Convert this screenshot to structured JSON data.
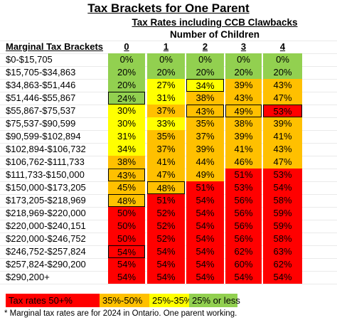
{
  "title": "Tax Brackets for One Parent",
  "subtitle": "Tax Rates including CCB Clawbacks",
  "subheader": "Number of Children",
  "bracket_header": "Marginal Tax Brackets",
  "children_headers": [
    "0",
    "1",
    "2",
    "3",
    "4"
  ],
  "colors": {
    "red": "#ff0000",
    "orange": "#ffc000",
    "yellow": "#ffff00",
    "green": "#92d050"
  },
  "rows": [
    {
      "bracket": "$0-$15,705",
      "rates": [
        "0%",
        "0%",
        "0%",
        "0%",
        "0%"
      ],
      "colors": [
        "green",
        "green",
        "green",
        "green",
        "green"
      ],
      "boxed": []
    },
    {
      "bracket": "$15,705-$34,863",
      "rates": [
        "20%",
        "20%",
        "20%",
        "20%",
        "20%"
      ],
      "colors": [
        "green",
        "green",
        "green",
        "green",
        "green"
      ],
      "boxed": []
    },
    {
      "bracket": "$34,863-$51,446",
      "rates": [
        "20%",
        "27%",
        "34%",
        "39%",
        "43%"
      ],
      "colors": [
        "green",
        "yellow",
        "yellow",
        "orange",
        "orange"
      ],
      "boxed": [
        2
      ]
    },
    {
      "bracket": "$51,446-$55,867",
      "rates": [
        "24%",
        "31%",
        "38%",
        "43%",
        "47%"
      ],
      "colors": [
        "green",
        "yellow",
        "orange",
        "orange",
        "orange"
      ],
      "boxed": [
        0
      ]
    },
    {
      "bracket": "$55,867-$75,537",
      "rates": [
        "30%",
        "37%",
        "43%",
        "49%",
        "53%"
      ],
      "colors": [
        "yellow",
        "orange",
        "orange",
        "orange",
        "red"
      ],
      "boxed": [
        2,
        3,
        4
      ]
    },
    {
      "bracket": "$75,537-$90,599",
      "rates": [
        "30%",
        "33%",
        "35%",
        "38%",
        "39%"
      ],
      "colors": [
        "yellow",
        "yellow",
        "orange",
        "orange",
        "orange"
      ],
      "boxed": []
    },
    {
      "bracket": "$90,599-$102,894",
      "rates": [
        "31%",
        "35%",
        "37%",
        "39%",
        "41%"
      ],
      "colors": [
        "yellow",
        "orange",
        "orange",
        "orange",
        "orange"
      ],
      "boxed": []
    },
    {
      "bracket": "$102,894-$106,732",
      "rates": [
        "34%",
        "37%",
        "39%",
        "41%",
        "43%"
      ],
      "colors": [
        "yellow",
        "orange",
        "orange",
        "orange",
        "orange"
      ],
      "boxed": []
    },
    {
      "bracket": "$106,762-$111,733",
      "rates": [
        "38%",
        "41%",
        "44%",
        "46%",
        "47%"
      ],
      "colors": [
        "orange",
        "orange",
        "orange",
        "orange",
        "orange"
      ],
      "boxed": []
    },
    {
      "bracket": "$111,733-$150,000",
      "rates": [
        "43%",
        "47%",
        "49%",
        "51%",
        "53%"
      ],
      "colors": [
        "orange",
        "orange",
        "orange",
        "red",
        "red"
      ],
      "boxed": [
        0
      ]
    },
    {
      "bracket": "$150,000-$173,205",
      "rates": [
        "45%",
        "48%",
        "51%",
        "53%",
        "54%"
      ],
      "colors": [
        "orange",
        "orange",
        "red",
        "red",
        "red"
      ],
      "boxed": [
        1
      ]
    },
    {
      "bracket": "$173,205-$218,969",
      "rates": [
        "48%",
        "51%",
        "54%",
        "56%",
        "58%"
      ],
      "colors": [
        "orange",
        "red",
        "red",
        "red",
        "red"
      ],
      "boxed": [
        0
      ]
    },
    {
      "bracket": "$218,969-$220,000",
      "rates": [
        "50%",
        "52%",
        "54%",
        "56%",
        "59%"
      ],
      "colors": [
        "red",
        "red",
        "red",
        "red",
        "red"
      ],
      "boxed": []
    },
    {
      "bracket": "$220,000-$240,151",
      "rates": [
        "50%",
        "52%",
        "54%",
        "56%",
        "59%"
      ],
      "colors": [
        "red",
        "red",
        "red",
        "red",
        "red"
      ],
      "boxed": []
    },
    {
      "bracket": "$220,000-$246,752",
      "rates": [
        "50%",
        "52%",
        "54%",
        "56%",
        "58%"
      ],
      "colors": [
        "red",
        "red",
        "red",
        "red",
        "red"
      ],
      "boxed": []
    },
    {
      "bracket": "$246,752-$257,824",
      "rates": [
        "54%",
        "54%",
        "54%",
        "62%",
        "63%"
      ],
      "colors": [
        "red",
        "red",
        "red",
        "red",
        "red"
      ],
      "boxed": [
        0
      ]
    },
    {
      "bracket": "$257,824-$290,200",
      "rates": [
        "54%",
        "54%",
        "54%",
        "60%",
        "62%"
      ],
      "colors": [
        "red",
        "red",
        "red",
        "red",
        "red"
      ],
      "boxed": []
    },
    {
      "bracket": "$290,200+",
      "rates": [
        "54%",
        "54%",
        "54%",
        "54%",
        "54%"
      ],
      "colors": [
        "red",
        "red",
        "red",
        "red",
        "red"
      ],
      "boxed": []
    }
  ],
  "legend": [
    {
      "label": "Tax rates 50+%",
      "color": "red"
    },
    {
      "label": "35%-50%",
      "color": "orange"
    },
    {
      "label": "25%-35%",
      "color": "yellow"
    },
    {
      "label": "25% or less",
      "color": "green"
    }
  ],
  "footnote": "* Marginal tax rates are for 2024 in Ontario. One parent working."
}
